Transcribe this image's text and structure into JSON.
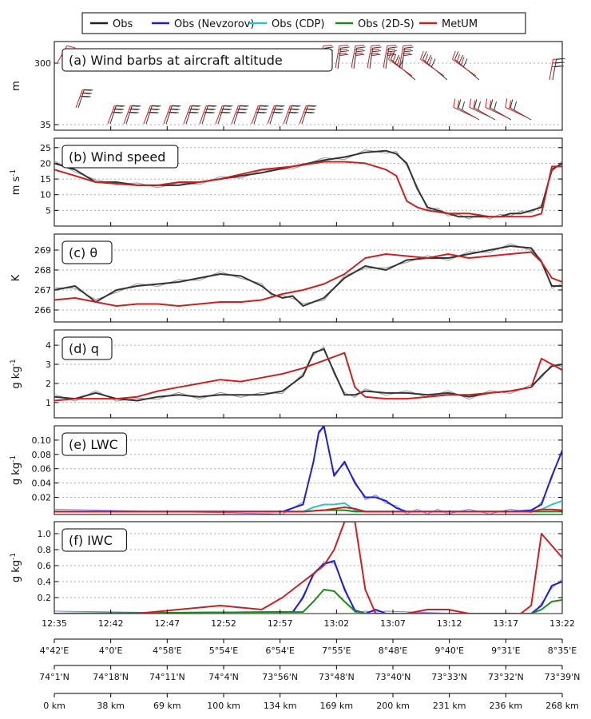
{
  "legend": {
    "entries": [
      {
        "label": "Obs",
        "color": "#222222"
      },
      {
        "label": "Obs (Nevzorov)",
        "color": "#1f1fd0"
      },
      {
        "label": "Obs (CDP)",
        "color": "#2ec4c4"
      },
      {
        "label": "Obs (2D-S)",
        "color": "#1a8a1a"
      },
      {
        "label": "MetUM",
        "color": "#cc2020"
      }
    ]
  },
  "chart_data": [
    {
      "id": "a",
      "type": "line",
      "title": "(a) Wind barbs at aircraft altitude",
      "ylabel": "m",
      "yticks": [
        "300",
        "35"
      ],
      "note": "wind barbs for Obs and MetUM along track"
    },
    {
      "id": "b",
      "type": "line",
      "title": "(b) Wind speed",
      "ylabel": "m s-1",
      "ylim": [
        0,
        28
      ],
      "yticks": [
        5,
        10,
        15,
        20,
        25
      ],
      "series": [
        {
          "name": "Obs",
          "color": "#333333",
          "x": [
            0,
            2,
            4,
            6,
            8,
            10,
            12,
            14,
            16,
            18,
            20,
            23,
            26,
            28,
            30,
            32,
            33,
            34,
            35,
            36,
            37,
            38,
            39,
            40,
            41,
            42,
            43,
            44,
            45,
            46,
            47,
            48,
            49
          ],
          "y": [
            20,
            18,
            14,
            14,
            13,
            13,
            13,
            14,
            15,
            16,
            17,
            19,
            21,
            22,
            23.5,
            24,
            23,
            20,
            12,
            6,
            5,
            4,
            3,
            3,
            3,
            3,
            3,
            4,
            4,
            5,
            6,
            18,
            20
          ]
        },
        {
          "name": "MetUM",
          "color": "#cc2020",
          "x": [
            0,
            2,
            4,
            6,
            8,
            10,
            12,
            14,
            16,
            18,
            20,
            23,
            26,
            28,
            30,
            31,
            32,
            33,
            34,
            35,
            36,
            37,
            38,
            40,
            42,
            44,
            46,
            47,
            48,
            49
          ],
          "y": [
            18,
            16,
            14,
            13.5,
            13,
            13,
            14,
            14,
            15,
            16.5,
            18,
            19,
            20.5,
            20.5,
            20,
            19,
            18,
            16,
            8,
            6,
            5,
            4.5,
            4,
            4,
            3,
            3,
            3,
            4,
            19,
            19
          ]
        }
      ]
    },
    {
      "id": "c",
      "type": "line",
      "title": "(c) θ",
      "ylabel": "K",
      "ylim": [
        265.4,
        269.8
      ],
      "yticks": [
        266,
        267,
        268,
        269
      ],
      "series": [
        {
          "name": "Obs",
          "color": "#333333",
          "x": [
            0,
            2,
            4,
            6,
            8,
            10,
            12,
            14,
            16,
            18,
            20,
            21,
            22,
            23,
            24,
            26,
            28,
            30,
            32,
            34,
            36,
            38,
            40,
            42,
            44,
            46,
            47,
            48,
            49
          ],
          "y": [
            267,
            267.2,
            266.4,
            267,
            267.2,
            267.3,
            267.4,
            267.6,
            267.8,
            267.7,
            267.2,
            266.8,
            266.6,
            266.7,
            266.2,
            266.6,
            267.6,
            268.2,
            268,
            268.5,
            268.6,
            268.6,
            268.8,
            269,
            269.2,
            269.1,
            268.4,
            267.2,
            267.2
          ]
        },
        {
          "name": "MetUM",
          "color": "#cc2020",
          "x": [
            0,
            2,
            4,
            6,
            8,
            10,
            12,
            14,
            16,
            18,
            20,
            22,
            24,
            26,
            28,
            30,
            32,
            34,
            36,
            38,
            40,
            42,
            44,
            46,
            47,
            48,
            49
          ],
          "y": [
            266.5,
            266.6,
            266.4,
            266.2,
            266.3,
            266.3,
            266.2,
            266.3,
            266.4,
            266.4,
            266.5,
            266.8,
            267,
            267.3,
            267.8,
            268.6,
            268.8,
            268.7,
            268.6,
            268.8,
            268.6,
            268.7,
            268.8,
            268.9,
            268.4,
            267.6,
            267.4
          ]
        }
      ]
    },
    {
      "id": "d",
      "type": "line",
      "title": "(d) q",
      "ylabel": "g kg-1",
      "ylim": [
        0.2,
        4.8
      ],
      "yticks": [
        1,
        2,
        3,
        4
      ],
      "series": [
        {
          "name": "Obs",
          "color": "#333333",
          "x": [
            0,
            2,
            4,
            6,
            8,
            10,
            12,
            14,
            16,
            18,
            20,
            22,
            24,
            25,
            26,
            27,
            28,
            29,
            30,
            32,
            34,
            36,
            38,
            40,
            42,
            44,
            46,
            47,
            48,
            49
          ],
          "y": [
            1.3,
            1.2,
            1.5,
            1.2,
            1.1,
            1.3,
            1.4,
            1.3,
            1.4,
            1.4,
            1.4,
            1.6,
            2.4,
            3.6,
            3.8,
            2.6,
            1.4,
            1.4,
            1.6,
            1.5,
            1.5,
            1.4,
            1.5,
            1.3,
            1.5,
            1.6,
            1.8,
            2.4,
            2.9,
            3.0
          ]
        },
        {
          "name": "MetUM",
          "color": "#cc2020",
          "x": [
            0,
            2,
            4,
            6,
            8,
            10,
            12,
            14,
            16,
            18,
            20,
            22,
            24,
            26,
            28,
            29,
            30,
            32,
            34,
            36,
            38,
            40,
            42,
            44,
            46,
            47,
            48,
            49
          ],
          "y": [
            1.1,
            1.2,
            1.2,
            1.2,
            1.3,
            1.6,
            1.8,
            2.0,
            2.2,
            2.1,
            2.3,
            2.5,
            2.8,
            3.2,
            3.6,
            1.8,
            1.3,
            1.2,
            1.2,
            1.3,
            1.4,
            1.4,
            1.5,
            1.6,
            1.8,
            3.3,
            3.0,
            2.7
          ]
        }
      ]
    },
    {
      "id": "e",
      "type": "line",
      "title": "(e) LWC",
      "ylabel": "g kg-1",
      "ylim": [
        -0.004,
        0.12
      ],
      "yticks": [
        0.02,
        0.04,
        0.06,
        0.08,
        0.1
      ],
      "series": [
        {
          "name": "Obs (Nevzorov)",
          "color": "#1f1fd0",
          "x": [
            0,
            22,
            24,
            25,
            25.5,
            26,
            27,
            28,
            29,
            30,
            31,
            32,
            33,
            34,
            35,
            36,
            37,
            38,
            40,
            42,
            44,
            46,
            47,
            48,
            49
          ],
          "y": [
            0,
            0,
            0.01,
            0.07,
            0.11,
            0.12,
            0.05,
            0.07,
            0.04,
            0.02,
            0.02,
            0.015,
            0.005,
            0,
            0,
            0,
            0,
            0,
            0,
            0,
            0,
            0.002,
            0.01,
            0.05,
            0.085
          ]
        },
        {
          "name": "Obs (CDP)",
          "color": "#2ec4c4",
          "x": [
            0,
            24,
            25,
            26,
            27,
            28,
            29,
            30,
            32,
            46,
            47,
            48,
            49
          ],
          "y": [
            0,
            0,
            0.006,
            0.01,
            0.01,
            0.012,
            0.002,
            0,
            0,
            0,
            0.003,
            0.01,
            0.015
          ]
        },
        {
          "name": "Obs (2D-S)",
          "color": "#1a8a1a",
          "x": [
            0,
            24,
            26,
            28,
            29,
            30,
            49
          ],
          "y": [
            0,
            0,
            0.002,
            0.002,
            0,
            0,
            0
          ]
        },
        {
          "name": "MetUM",
          "color": "#cc2020",
          "x": [
            0,
            24,
            26,
            28,
            29,
            30,
            46,
            47,
            48,
            49
          ],
          "y": [
            0,
            0,
            0.002,
            0.006,
            0.004,
            0,
            0,
            0.003,
            0.003,
            0.002
          ]
        }
      ]
    },
    {
      "id": "f",
      "type": "line",
      "title": "(f) IWC",
      "ylabel": "g kg-1",
      "ylim": [
        0,
        1.15
      ],
      "yticks": [
        0.2,
        0.4,
        0.6,
        0.8,
        1.0
      ],
      "series": [
        {
          "name": "Obs (Nevzorov)",
          "color": "#1f1fd0",
          "x": [
            0,
            23,
            24,
            25,
            26,
            27,
            28,
            29,
            30,
            31,
            32,
            46,
            47,
            48,
            49
          ],
          "y": [
            0,
            0.02,
            0.2,
            0.5,
            0.62,
            0.66,
            0.3,
            0.04,
            0,
            0.05,
            0,
            0,
            0.1,
            0.35,
            0.4
          ]
        },
        {
          "name": "Obs (CDP)",
          "color": "#2ec4c4",
          "x": [
            0,
            49
          ],
          "y": [
            0,
            0
          ]
        },
        {
          "name": "Obs (2D-S)",
          "color": "#1a8a1a",
          "x": [
            0,
            24,
            25,
            26,
            27,
            28,
            29,
            30,
            46,
            47,
            48,
            49
          ],
          "y": [
            0,
            0.02,
            0.15,
            0.3,
            0.28,
            0.15,
            0.03,
            0,
            0,
            0.05,
            0.15,
            0.17
          ]
        },
        {
          "name": "MetUM",
          "color": "#cc2020",
          "x": [
            0,
            8,
            12,
            16,
            20,
            22,
            24,
            26,
            27,
            28,
            29,
            30,
            31,
            34,
            36,
            38,
            40,
            44,
            45,
            46,
            47,
            48,
            49
          ],
          "y": [
            0,
            0,
            0.05,
            0.1,
            0.05,
            0.2,
            0.4,
            0.6,
            0.8,
            1.15,
            1.15,
            0.3,
            0,
            0,
            0.05,
            0.05,
            0,
            0,
            0,
            0.1,
            1.0,
            0.85,
            0.7
          ]
        }
      ]
    }
  ],
  "axes": {
    "time": [
      "12:35",
      "12:42",
      "12:47",
      "12:52",
      "12:57",
      "13:02",
      "13:07",
      "13:12",
      "13:17",
      "13:22"
    ],
    "lon": [
      "4°42'E",
      "4°0'E",
      "4°58'E",
      "5°54'E",
      "6°54'E",
      "7°55'E",
      "8°48'E",
      "9°40'E",
      "9°31'E",
      "8°35'E"
    ],
    "lat": [
      "74°1'N",
      "74°18'N",
      "74°11'N",
      "74°4'N",
      "73°56'N",
      "73°48'N",
      "73°40'N",
      "73°33'N",
      "73°32'N",
      "73°39'N"
    ],
    "dist": [
      "0 km",
      "38 km",
      "69 km",
      "100 km",
      "134 km",
      "169 km",
      "200 km",
      "231 km",
      "236 km",
      "268 km"
    ]
  }
}
